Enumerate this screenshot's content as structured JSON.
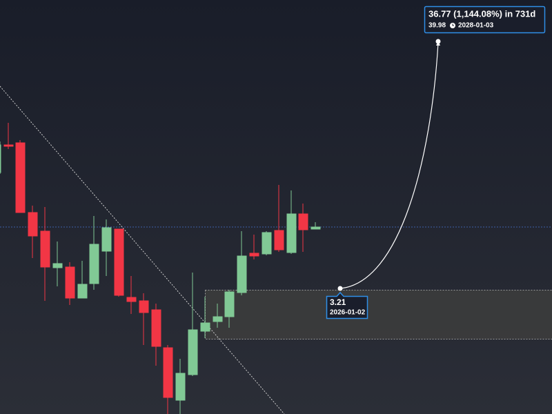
{
  "annotations": {
    "start": {
      "value": "3.21",
      "date": "2026-01-02"
    },
    "target": {
      "headline": "36.77 (1,144.08%) in 731d",
      "value": "39.98",
      "date": "2028-01-03"
    }
  }
}
